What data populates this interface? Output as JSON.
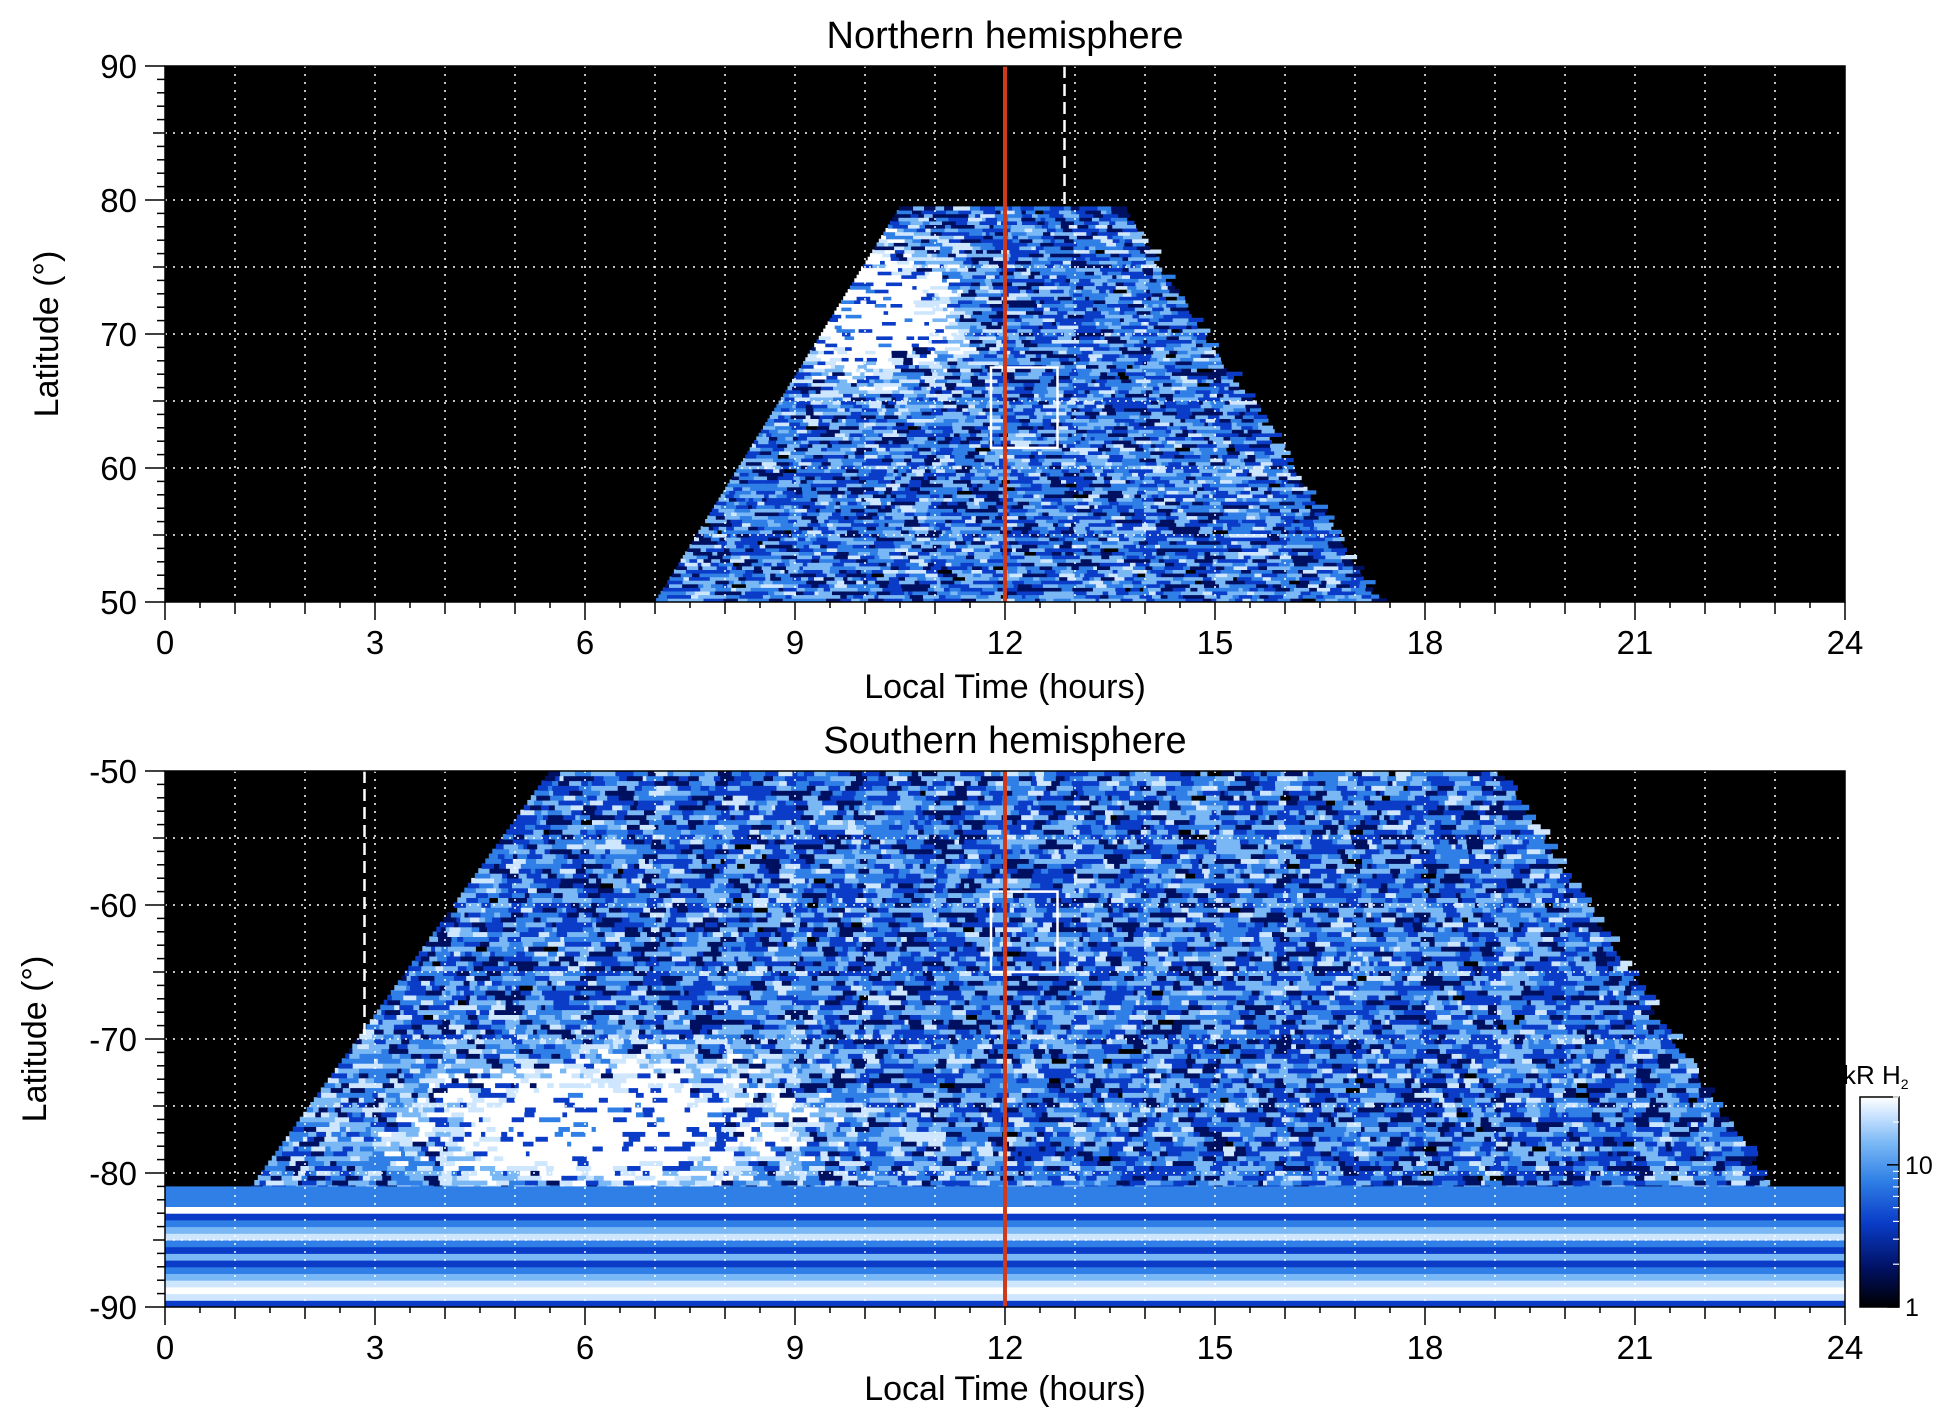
{
  "colors": {
    "background": "#000000",
    "grid": "#ffffff",
    "noon_line": "#d03a1c",
    "marker": "#ffffff",
    "colormap": [
      "#000000",
      "#001060",
      "#0a3cc8",
      "#2f7fe6",
      "#7ab8f5",
      "#cfe6ff",
      "#ffffff"
    ]
  },
  "colorbar": {
    "label": "kR H",
    "label_sub": "2",
    "scale": "log",
    "range": [
      1,
      30
    ],
    "ticks": [
      {
        "value": 10,
        "label": "10"
      },
      {
        "value": 1,
        "label": "1"
      }
    ]
  },
  "chart_data": [
    {
      "type": "heatmap",
      "id": "north",
      "title": "Northern hemisphere",
      "xlabel": "Local Time (hours)",
      "ylabel": "Latitude (°)",
      "xlim": [
        0,
        24
      ],
      "ylim": [
        50,
        90
      ],
      "xticks": [
        "0",
        "3",
        "6",
        "9",
        "12",
        "15",
        "18",
        "21",
        "24"
      ],
      "yticks": [
        "50",
        "60",
        "70",
        "80",
        "90"
      ],
      "noon_line_lt": 12,
      "dashed_line": {
        "lt": 12.85,
        "lat_from": 90,
        "lat_to": 79.5
      },
      "box": {
        "lt_min": 11.8,
        "lt_max": 12.75,
        "lat_min": 61.5,
        "lat_max": 67.5
      },
      "coverage": {
        "lat_max": 79.5,
        "lt_start_at_min_lat": 7.0,
        "lt_end_at_min_lat": 17.3,
        "lt_start_at_max_lat": 10.5,
        "lt_end_at_max_lat": 13.6
      },
      "bright_region": {
        "lt_center": 10.0,
        "lat_center": 71.5,
        "lt_halfwidth": 1.2,
        "lat_halfwidth": 4.5
      }
    },
    {
      "type": "heatmap",
      "id": "south",
      "title": "Southern hemisphere",
      "xlabel": "Local Time (hours)",
      "ylabel": "Latitude (°)",
      "xlim": [
        0,
        24
      ],
      "ylim": [
        -90,
        -50
      ],
      "xticks": [
        "0",
        "3",
        "6",
        "9",
        "12",
        "15",
        "18",
        "21",
        "24"
      ],
      "yticks": [
        "-50",
        "-60",
        "-70",
        "-80",
        "-90"
      ],
      "noon_line_lt": 12,
      "dashed_line": {
        "lt": 2.85,
        "lat_from": -50,
        "lat_to": -70
      },
      "box": {
        "lt_min": 11.8,
        "lt_max": 12.75,
        "lat_min": -65,
        "lat_max": -59
      },
      "coverage": {
        "lat_max": -50,
        "lt_start_at_min_lat": 0,
        "lt_end_at_min_lat": 24,
        "lt_start_at_max_lat": 5.5,
        "lt_end_at_max_lat": 19.0
      },
      "bright_region": {
        "lt_center": 6.2,
        "lat_center": -76.5,
        "lt_halfwidth": 2.6,
        "lat_halfwidth": 4.5
      }
    }
  ]
}
